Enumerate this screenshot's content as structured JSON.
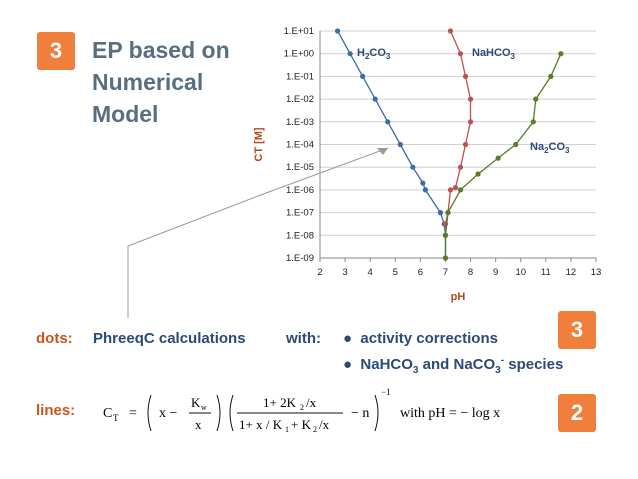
{
  "badge_top": "3",
  "title_lines": [
    "EP based on",
    "Numerical",
    "Model"
  ],
  "notes": {
    "dots_label": "dots:",
    "dots_text": "PhreeqC calculations",
    "with": "with:",
    "bullet1": "activity corrections",
    "bullet2_pre": "NaHCO",
    "bullet2_sub": "3",
    "bullet2_mid": " and NaCO",
    "bullet2_sub2": "3",
    "bullet2_sup": "-",
    "bullet2_post": " species",
    "badge_mid": "3",
    "lines_label": "lines:",
    "badge_bottom": "2",
    "with_ph": "with  pH = − log x"
  },
  "chart_data": {
    "type": "scatter",
    "xlabel": "pH",
    "ylabel": "C_T [M]",
    "xlim": [
      2,
      13
    ],
    "ylim_log10": [
      -9,
      1
    ],
    "y_scale": "log",
    "x_ticks": [
      "2",
      "3",
      "4",
      "5",
      "6",
      "7",
      "8",
      "9",
      "10",
      "11",
      "12",
      "13"
    ],
    "y_ticks": [
      "1.E-09",
      "1.E-08",
      "1.E-07",
      "1.E-06",
      "1.E-05",
      "1.E-04",
      "1.E-03",
      "1.E-02",
      "1.E-01",
      "1.E+00",
      "1.E+01"
    ],
    "grid": "horizontal",
    "series": [
      {
        "name": "H2CO3",
        "label_main": "H",
        "label_sub": "2",
        "label_rest": "CO",
        "label_sub2": "3",
        "color": "#3d6aa8",
        "points": [
          [
            2.7,
            1
          ],
          [
            3.2,
            0
          ],
          [
            3.7,
            -1
          ],
          [
            4.2,
            -2
          ],
          [
            4.7,
            -3
          ],
          [
            5.2,
            -4
          ],
          [
            5.7,
            -5
          ],
          [
            6.1,
            -5.7
          ],
          [
            6.2,
            -6
          ],
          [
            6.8,
            -7
          ],
          [
            6.95,
            -7.5
          ],
          [
            7.0,
            -8
          ],
          [
            7.0,
            -9
          ]
        ]
      },
      {
        "name": "NaHCO3",
        "label_main": "NaHCO",
        "label_sub": "3",
        "label_rest": "",
        "label_sub2": "",
        "color": "#c0504d",
        "points": [
          [
            7.2,
            1
          ],
          [
            7.6,
            0
          ],
          [
            7.8,
            -1
          ],
          [
            8.0,
            -2
          ],
          [
            8.0,
            -3
          ],
          [
            7.8,
            -4
          ],
          [
            7.6,
            -5
          ],
          [
            7.4,
            -5.9
          ],
          [
            7.2,
            -6
          ],
          [
            7.1,
            -7
          ],
          [
            7.0,
            -7.5
          ],
          [
            7.0,
            -8
          ]
        ]
      },
      {
        "name": "Na2CO3",
        "label_main": "Na",
        "label_sub": "2",
        "label_rest": "CO",
        "label_sub2": "3",
        "color": "#5b7a2c",
        "points": [
          [
            11.6,
            0
          ],
          [
            11.2,
            -1
          ],
          [
            10.6,
            -2
          ],
          [
            10.5,
            -3
          ],
          [
            9.8,
            -4
          ],
          [
            9.1,
            -4.6
          ],
          [
            8.3,
            -5.3
          ],
          [
            7.6,
            -6
          ],
          [
            7.1,
            -7
          ],
          [
            7.0,
            -8
          ],
          [
            7.0,
            -9
          ]
        ]
      }
    ]
  }
}
